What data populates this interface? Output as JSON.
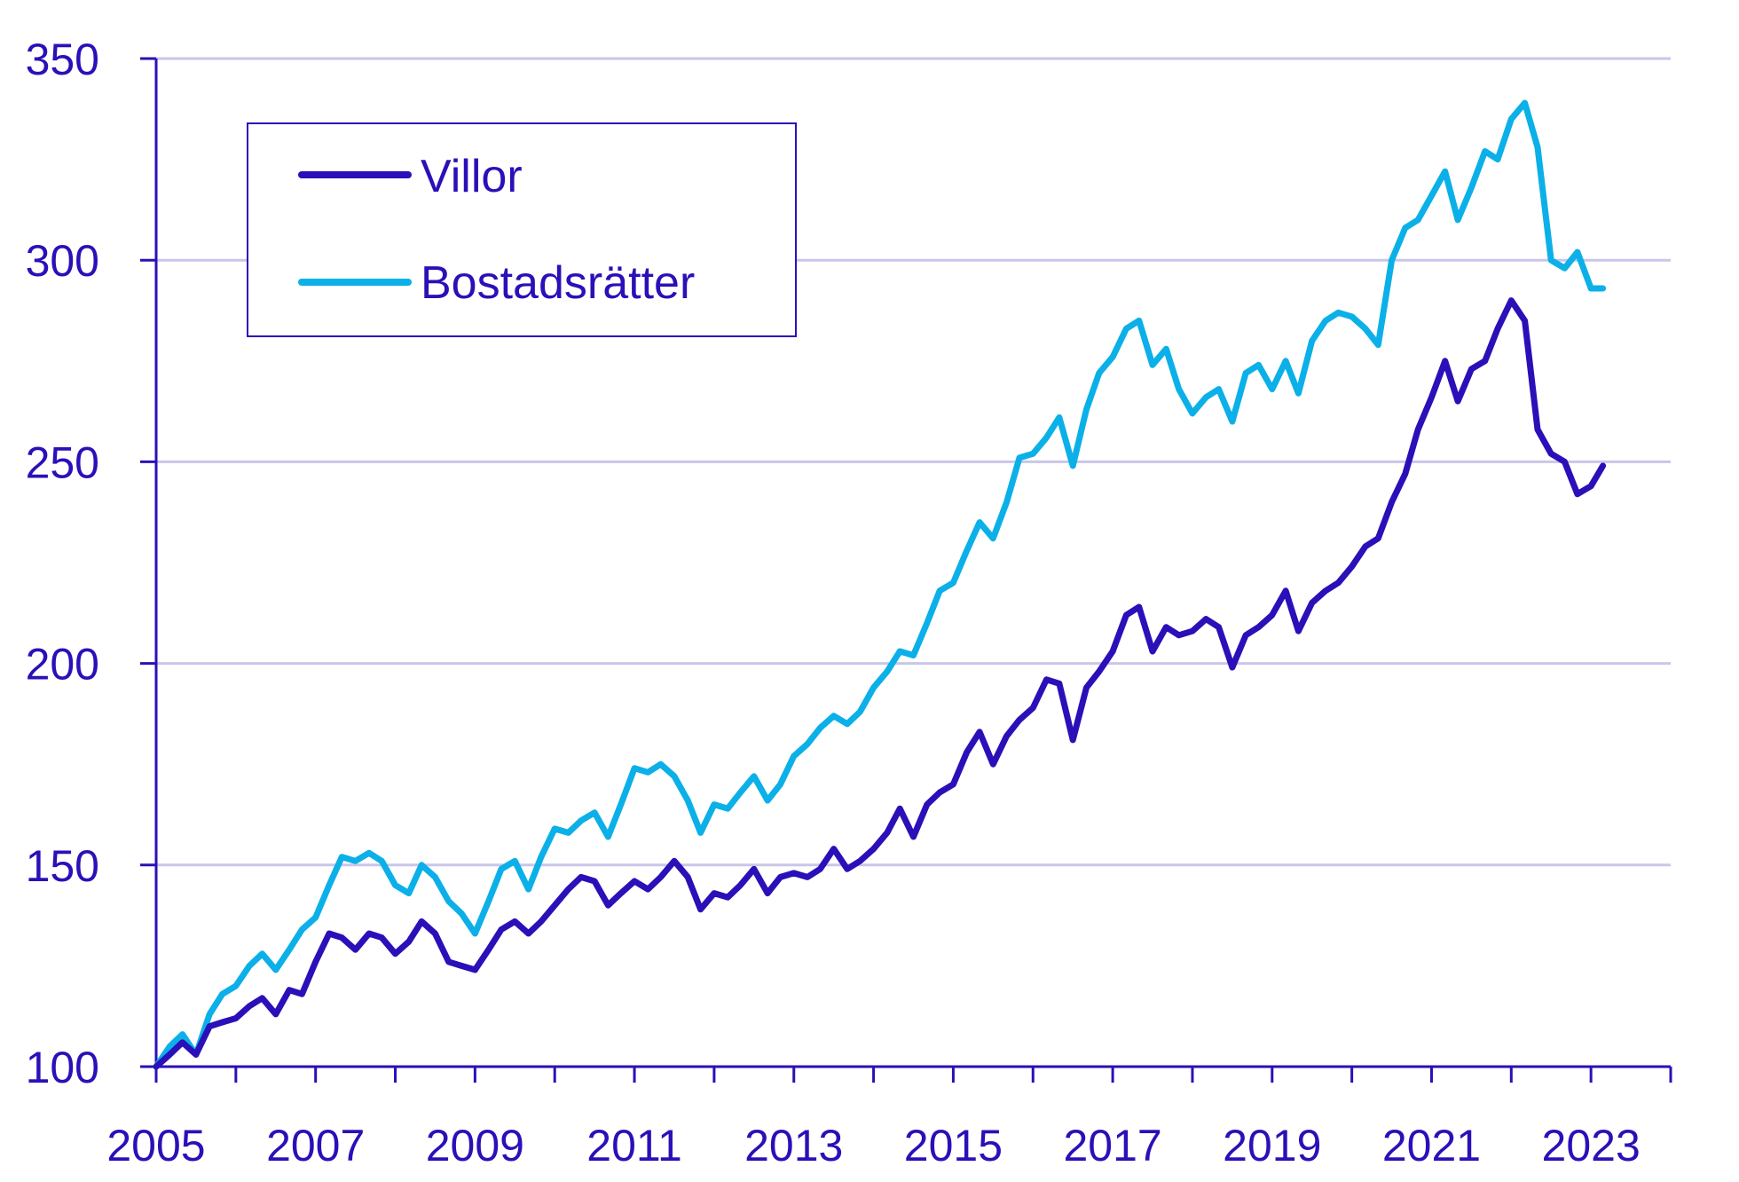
{
  "chart_data": {
    "type": "line",
    "title": "",
    "xlabel": "",
    "ylabel": "",
    "xlim": [
      2005,
      2024
    ],
    "ylim": [
      100,
      350
    ],
    "x_ticks": [
      "2005",
      "2007",
      "2009",
      "2011",
      "2013",
      "2015",
      "2017",
      "2019",
      "2021",
      "2023"
    ],
    "y_ticks": [
      "100",
      "150",
      "200",
      "250",
      "300",
      "350"
    ],
    "grid": "horizontal",
    "legend_position": "top-left",
    "colors": {
      "axis": "#2a10b8",
      "grid": "#c9c6ea",
      "villor": "#2a10b8",
      "bostadsratter": "#0bb0e8"
    },
    "series": [
      {
        "name": "Villor",
        "color": "#2a10b8",
        "points": [
          [
            2005.0,
            100
          ],
          [
            2005.17,
            103
          ],
          [
            2005.33,
            106
          ],
          [
            2005.5,
            103
          ],
          [
            2005.67,
            110
          ],
          [
            2005.83,
            111
          ],
          [
            2006.0,
            112
          ],
          [
            2006.17,
            115
          ],
          [
            2006.33,
            117
          ],
          [
            2006.5,
            113
          ],
          [
            2006.67,
            119
          ],
          [
            2006.83,
            118
          ],
          [
            2007.0,
            126
          ],
          [
            2007.17,
            133
          ],
          [
            2007.33,
            132
          ],
          [
            2007.5,
            129
          ],
          [
            2007.67,
            133
          ],
          [
            2007.83,
            132
          ],
          [
            2008.0,
            128
          ],
          [
            2008.17,
            131
          ],
          [
            2008.33,
            136
          ],
          [
            2008.5,
            133
          ],
          [
            2008.67,
            126
          ],
          [
            2008.83,
            125
          ],
          [
            2009.0,
            124
          ],
          [
            2009.17,
            129
          ],
          [
            2009.33,
            134
          ],
          [
            2009.5,
            136
          ],
          [
            2009.67,
            133
          ],
          [
            2009.83,
            136
          ],
          [
            2010.0,
            140
          ],
          [
            2010.17,
            144
          ],
          [
            2010.33,
            147
          ],
          [
            2010.5,
            146
          ],
          [
            2010.67,
            140
          ],
          [
            2010.83,
            143
          ],
          [
            2011.0,
            146
          ],
          [
            2011.17,
            144
          ],
          [
            2011.33,
            147
          ],
          [
            2011.5,
            151
          ],
          [
            2011.67,
            147
          ],
          [
            2011.83,
            139
          ],
          [
            2012.0,
            143
          ],
          [
            2012.17,
            142
          ],
          [
            2012.33,
            145
          ],
          [
            2012.5,
            149
          ],
          [
            2012.67,
            143
          ],
          [
            2012.83,
            147
          ],
          [
            2013.0,
            148
          ],
          [
            2013.17,
            147
          ],
          [
            2013.33,
            149
          ],
          [
            2013.5,
            154
          ],
          [
            2013.67,
            149
          ],
          [
            2013.83,
            151
          ],
          [
            2014.0,
            154
          ],
          [
            2014.17,
            158
          ],
          [
            2014.33,
            164
          ],
          [
            2014.5,
            157
          ],
          [
            2014.67,
            165
          ],
          [
            2014.83,
            168
          ],
          [
            2015.0,
            170
          ],
          [
            2015.17,
            178
          ],
          [
            2015.33,
            183
          ],
          [
            2015.5,
            175
          ],
          [
            2015.67,
            182
          ],
          [
            2015.83,
            186
          ],
          [
            2016.0,
            189
          ],
          [
            2016.17,
            196
          ],
          [
            2016.33,
            195
          ],
          [
            2016.5,
            181
          ],
          [
            2016.67,
            194
          ],
          [
            2016.83,
            198
          ],
          [
            2017.0,
            203
          ],
          [
            2017.17,
            212
          ],
          [
            2017.33,
            214
          ],
          [
            2017.5,
            203
          ],
          [
            2017.67,
            209
          ],
          [
            2017.83,
            207
          ],
          [
            2018.0,
            208
          ],
          [
            2018.17,
            211
          ],
          [
            2018.33,
            209
          ],
          [
            2018.5,
            199
          ],
          [
            2018.67,
            207
          ],
          [
            2018.83,
            209
          ],
          [
            2019.0,
            212
          ],
          [
            2019.17,
            218
          ],
          [
            2019.33,
            208
          ],
          [
            2019.5,
            215
          ],
          [
            2019.67,
            218
          ],
          [
            2019.83,
            220
          ],
          [
            2020.0,
            224
          ],
          [
            2020.17,
            229
          ],
          [
            2020.33,
            231
          ],
          [
            2020.5,
            240
          ],
          [
            2020.67,
            247
          ],
          [
            2020.83,
            258
          ],
          [
            2021.0,
            266
          ],
          [
            2021.17,
            275
          ],
          [
            2021.33,
            265
          ],
          [
            2021.5,
            273
          ],
          [
            2021.67,
            275
          ],
          [
            2021.83,
            283
          ],
          [
            2022.0,
            290
          ],
          [
            2022.17,
            285
          ],
          [
            2022.33,
            258
          ],
          [
            2022.5,
            252
          ],
          [
            2022.67,
            250
          ],
          [
            2022.83,
            242
          ],
          [
            2023.0,
            244
          ],
          [
            2023.15,
            249
          ]
        ]
      },
      {
        "name": "Bostadsrätter",
        "color": "#0bb0e8",
        "points": [
          [
            2005.0,
            100
          ],
          [
            2005.17,
            105
          ],
          [
            2005.33,
            108
          ],
          [
            2005.5,
            103
          ],
          [
            2005.67,
            113
          ],
          [
            2005.83,
            118
          ],
          [
            2006.0,
            120
          ],
          [
            2006.17,
            125
          ],
          [
            2006.33,
            128
          ],
          [
            2006.5,
            124
          ],
          [
            2006.67,
            129
          ],
          [
            2006.83,
            134
          ],
          [
            2007.0,
            137
          ],
          [
            2007.17,
            145
          ],
          [
            2007.33,
            152
          ],
          [
            2007.5,
            151
          ],
          [
            2007.67,
            153
          ],
          [
            2007.83,
            151
          ],
          [
            2008.0,
            145
          ],
          [
            2008.17,
            143
          ],
          [
            2008.33,
            150
          ],
          [
            2008.5,
            147
          ],
          [
            2008.67,
            141
          ],
          [
            2008.83,
            138
          ],
          [
            2009.0,
            133
          ],
          [
            2009.17,
            141
          ],
          [
            2009.33,
            149
          ],
          [
            2009.5,
            151
          ],
          [
            2009.67,
            144
          ],
          [
            2009.83,
            152
          ],
          [
            2010.0,
            159
          ],
          [
            2010.17,
            158
          ],
          [
            2010.33,
            161
          ],
          [
            2010.5,
            163
          ],
          [
            2010.67,
            157
          ],
          [
            2010.83,
            165
          ],
          [
            2011.0,
            174
          ],
          [
            2011.17,
            173
          ],
          [
            2011.33,
            175
          ],
          [
            2011.5,
            172
          ],
          [
            2011.67,
            166
          ],
          [
            2011.83,
            158
          ],
          [
            2012.0,
            165
          ],
          [
            2012.17,
            164
          ],
          [
            2012.33,
            168
          ],
          [
            2012.5,
            172
          ],
          [
            2012.67,
            166
          ],
          [
            2012.83,
            170
          ],
          [
            2013.0,
            177
          ],
          [
            2013.17,
            180
          ],
          [
            2013.33,
            184
          ],
          [
            2013.5,
            187
          ],
          [
            2013.67,
            185
          ],
          [
            2013.83,
            188
          ],
          [
            2014.0,
            194
          ],
          [
            2014.17,
            198
          ],
          [
            2014.33,
            203
          ],
          [
            2014.5,
            202
          ],
          [
            2014.67,
            210
          ],
          [
            2014.83,
            218
          ],
          [
            2015.0,
            220
          ],
          [
            2015.17,
            228
          ],
          [
            2015.33,
            235
          ],
          [
            2015.5,
            231
          ],
          [
            2015.67,
            240
          ],
          [
            2015.83,
            251
          ],
          [
            2016.0,
            252
          ],
          [
            2016.17,
            256
          ],
          [
            2016.33,
            261
          ],
          [
            2016.5,
            249
          ],
          [
            2016.67,
            263
          ],
          [
            2016.83,
            272
          ],
          [
            2017.0,
            276
          ],
          [
            2017.17,
            283
          ],
          [
            2017.33,
            285
          ],
          [
            2017.5,
            274
          ],
          [
            2017.67,
            278
          ],
          [
            2017.83,
            268
          ],
          [
            2018.0,
            262
          ],
          [
            2018.17,
            266
          ],
          [
            2018.33,
            268
          ],
          [
            2018.5,
            260
          ],
          [
            2018.67,
            272
          ],
          [
            2018.83,
            274
          ],
          [
            2019.0,
            268
          ],
          [
            2019.17,
            275
          ],
          [
            2019.33,
            267
          ],
          [
            2019.5,
            280
          ],
          [
            2019.67,
            285
          ],
          [
            2019.83,
            287
          ],
          [
            2020.0,
            286
          ],
          [
            2020.17,
            283
          ],
          [
            2020.33,
            279
          ],
          [
            2020.5,
            300
          ],
          [
            2020.67,
            308
          ],
          [
            2020.83,
            310
          ],
          [
            2021.0,
            316
          ],
          [
            2021.17,
            322
          ],
          [
            2021.33,
            310
          ],
          [
            2021.5,
            318
          ],
          [
            2021.67,
            327
          ],
          [
            2021.83,
            325
          ],
          [
            2022.0,
            335
          ],
          [
            2022.17,
            339
          ],
          [
            2022.33,
            328
          ],
          [
            2022.5,
            300
          ],
          [
            2022.67,
            298
          ],
          [
            2022.83,
            302
          ],
          [
            2023.0,
            293
          ],
          [
            2023.15,
            293
          ]
        ]
      }
    ]
  }
}
